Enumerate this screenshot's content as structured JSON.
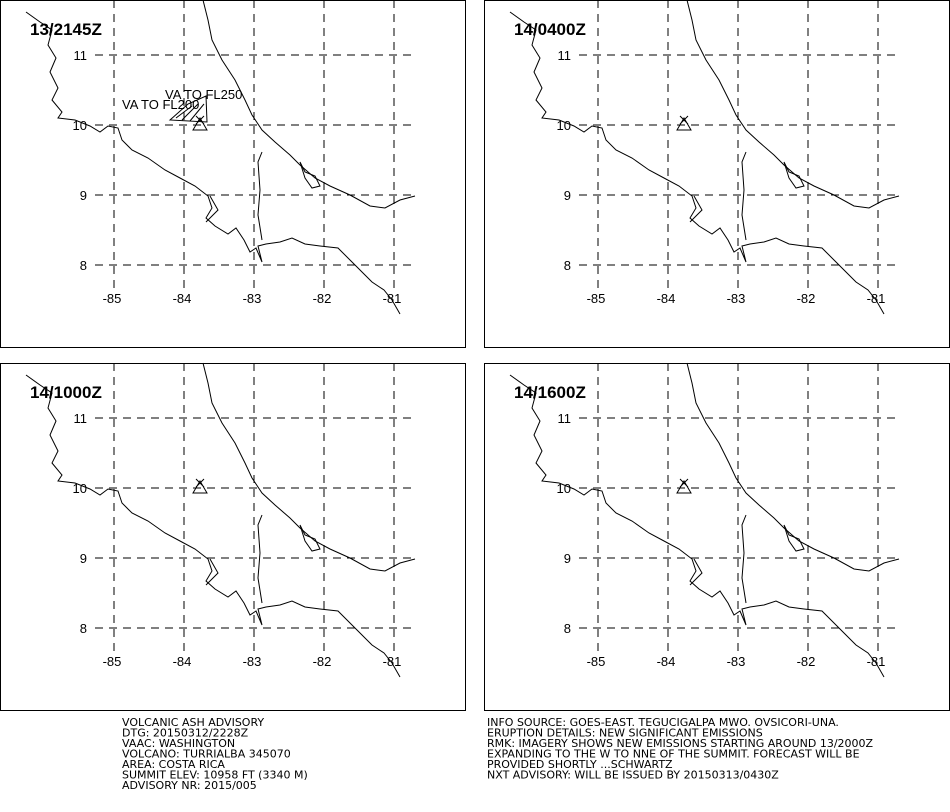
{
  "panels": [
    {
      "time": "13/2145Z",
      "annotations": [
        "VA TO FL250",
        "VA TO FL200"
      ]
    },
    {
      "time": "14/0400Z"
    },
    {
      "time": "14/1000Z"
    },
    {
      "time": "14/1600Z"
    }
  ],
  "lat_ticks": [
    11,
    10,
    9,
    8
  ],
  "lon_ticks": [
    -85,
    -84,
    -83,
    -82,
    -81
  ],
  "advisory_left": [
    "VOLCANIC ASH ADVISORY",
    "DTG: 20150312/2228Z",
    "VAAC: WASHINGTON",
    "VOLCANO: TURRIALBA 345070",
    "AREA: COSTA RICA",
    "SUMMIT ELEV: 10958 FT (3340 M)",
    "ADVISORY NR: 2015/005"
  ],
  "advisory_right": [
    "INFO SOURCE: GOES-EAST. TEGUCIGALPA MWO. OVSICORI-UNA.",
    "ERUPTION DETAILS: NEW SIGNIFICANT EMISSIONS",
    "RMK: IMAGERY SHOWS NEW EMISSIONS STARTING AROUND 13/2000Z",
    "EXPANDING TO THE W TO NNE OF THE SUMMIT. FORECAST WILL BE",
    "PROVIDED SHORTLY ...SCHWARTZ",
    "NXT ADVISORY: WILL BE ISSUED BY 20150313/0430Z"
  ]
}
